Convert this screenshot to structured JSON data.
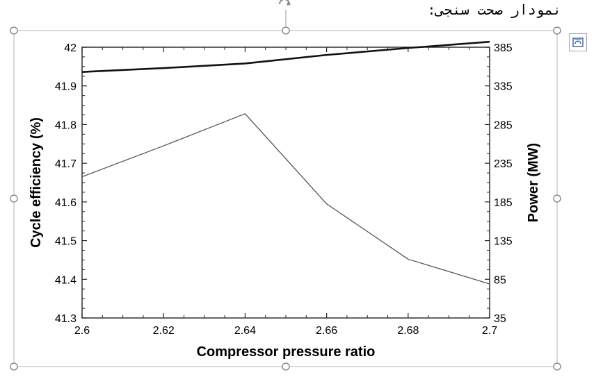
{
  "caption": "نمودار صحت سنجی:",
  "icons": {
    "rotate_handle": "rotate-handle-icon",
    "layout_options": "layout-options-icon"
  },
  "chart_data": {
    "type": "line",
    "title": "",
    "xlabel": "Compressor pressure ratio",
    "ylabel": "Cycle efficiency (%)",
    "y2label": "Power (MW)",
    "x": [
      2.6,
      2.62,
      2.64,
      2.66,
      2.68,
      2.7
    ],
    "xlim": [
      2.6,
      2.7
    ],
    "ylim": [
      41.3,
      42
    ],
    "y2lim": [
      35,
      385
    ],
    "xticks": [
      "2.6",
      "2.62",
      "2.64",
      "2.66",
      "2.68",
      "2.7"
    ],
    "yticks": [
      "41.3",
      "41.4",
      "41.5",
      "41.6",
      "41.7",
      "41.8",
      "41.9",
      "42"
    ],
    "y2ticks": [
      "35",
      "85",
      "135",
      "185",
      "235",
      "285",
      "335",
      "385"
    ],
    "grid": false,
    "series": [
      {
        "axis": "right",
        "color": "#111111",
        "values": [
          353,
          358,
          364,
          375,
          384,
          392
        ]
      },
      {
        "axis": "left",
        "color": "#555555",
        "values": [
          41.665,
          41.745,
          41.828,
          41.595,
          41.452,
          41.388
        ]
      }
    ]
  }
}
